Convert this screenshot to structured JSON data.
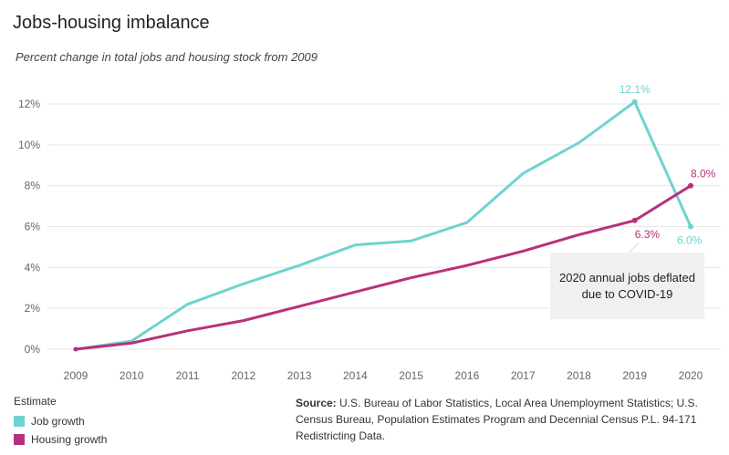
{
  "title": "Jobs-housing imbalance",
  "subtitle": "Percent change in total jobs and housing stock from 2009",
  "annotation": "2020 annual jobs deflated due to COVID-19",
  "legend": {
    "title": "Estimate",
    "items": [
      "Job growth",
      "Housing growth"
    ]
  },
  "source": {
    "label": "Source:",
    "text": "U.S. Bureau of Labor Statistics, Local Area Unemployment Statistics; U.S. Census Bureau, Population Estimates Program and Decennial Census P.L. 94-171 Redistricting Data."
  },
  "colors": {
    "job": "#6fd3cf",
    "housing": "#b8307c",
    "grid": "#e6e6e6"
  },
  "chart_data": {
    "type": "line",
    "x": [
      2009,
      2010,
      2011,
      2012,
      2013,
      2014,
      2015,
      2016,
      2017,
      2018,
      2019,
      2020
    ],
    "ylim": [
      0,
      13
    ],
    "yticks": [
      0,
      2,
      4,
      6,
      8,
      10,
      12
    ],
    "ytick_labels": [
      "0%",
      "2%",
      "4%",
      "6%",
      "8%",
      "10%",
      "12%"
    ],
    "grid": true,
    "series": [
      {
        "name": "Job growth",
        "values": [
          0,
          0.4,
          2.2,
          3.2,
          4.1,
          5.1,
          5.3,
          6.2,
          8.6,
          10.1,
          12.1,
          6.0
        ]
      },
      {
        "name": "Housing growth",
        "values": [
          0,
          0.3,
          0.9,
          1.4,
          2.1,
          2.8,
          3.5,
          4.1,
          4.8,
          5.6,
          6.3,
          8.0
        ]
      }
    ],
    "data_labels": [
      {
        "series": 0,
        "x": 2019,
        "text": "12.1%"
      },
      {
        "series": 0,
        "x": 2020,
        "text": "6.0%"
      },
      {
        "series": 1,
        "x": 2019,
        "text": "6.3%"
      },
      {
        "series": 1,
        "x": 2020,
        "text": "8.0%"
      }
    ]
  }
}
